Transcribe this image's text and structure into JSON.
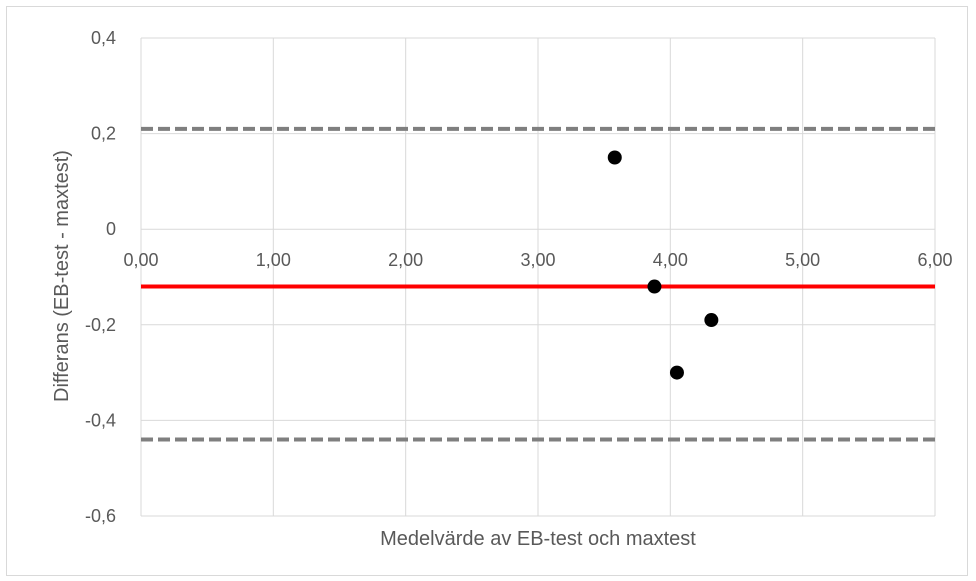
{
  "chart_data": {
    "type": "scatter",
    "title": "",
    "xlabel": "Medelvärde av EB-test och maxtest",
    "ylabel": "Differans (EB-test - maxtest)",
    "xlim": [
      0,
      6
    ],
    "ylim": [
      -0.6,
      0.4
    ],
    "x_ticks": [
      0,
      1,
      2,
      3,
      4,
      5,
      6
    ],
    "x_tick_labels": [
      "0,00",
      "1,00",
      "2,00",
      "3,00",
      "4,00",
      "5,00",
      "6,00"
    ],
    "y_ticks": [
      0.4,
      0.2,
      0,
      -0.2,
      -0.4,
      -0.6
    ],
    "y_tick_labels": [
      "0,4",
      "0,2",
      "0",
      "-0,2",
      "-0,4",
      "-0,6"
    ],
    "grid": true,
    "points": [
      {
        "x": 3.58,
        "y": 0.15
      },
      {
        "x": 3.88,
        "y": -0.12
      },
      {
        "x": 4.05,
        "y": -0.3
      },
      {
        "x": 4.31,
        "y": -0.19
      }
    ],
    "reference_lines": [
      {
        "role": "mean-difference",
        "y": -0.12,
        "color": "#ff0000",
        "style": "solid"
      },
      {
        "role": "upper-limit-of-agreement",
        "y": 0.21,
        "color": "#7f7f7f",
        "style": "dashed"
      },
      {
        "role": "lower-limit-of-agreement",
        "y": -0.44,
        "color": "#7f7f7f",
        "style": "dashed"
      }
    ],
    "colors": {
      "points": "#000000",
      "grid": "#d9d9d9",
      "text": "#595959"
    }
  }
}
